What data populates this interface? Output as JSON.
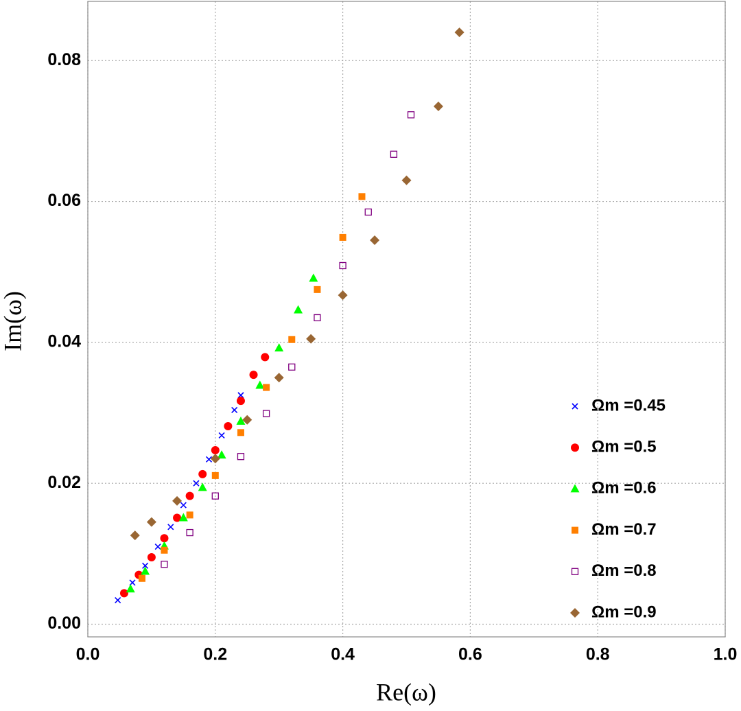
{
  "chart_data": {
    "type": "scatter",
    "xlabel": "Re(ω)",
    "ylabel": "Im(ω)",
    "xlim": [
      0,
      1
    ],
    "ylim": [
      -0.0018,
      0.0884
    ],
    "xticks": [
      {
        "value": 0,
        "label": "0.0"
      },
      0.2,
      0.4,
      0.6,
      0.8,
      {
        "value": 1,
        "label": "1.0"
      }
    ],
    "yticks": [
      {
        "value": 0,
        "label": "0.00"
      },
      0.02,
      0.04,
      0.06,
      0.08
    ],
    "grid": true,
    "legend": "right",
    "series": [
      {
        "name": "Ωm =0.45",
        "color": "#0000ff",
        "marker": "x",
        "x": [
          0.047,
          0.07,
          0.09,
          0.11,
          0.13,
          0.15,
          0.17,
          0.19,
          0.21,
          0.23,
          0.24
        ],
        "values": [
          0.0034,
          0.0059,
          0.0083,
          0.011,
          0.0138,
          0.0169,
          0.02,
          0.0234,
          0.0268,
          0.0304,
          0.0325
        ]
      },
      {
        "name": "Ωm =0.5",
        "color": "#ff0000",
        "marker": "circle",
        "x": [
          0.057,
          0.08,
          0.1,
          0.12,
          0.14,
          0.16,
          0.18,
          0.2,
          0.22,
          0.24,
          0.26,
          0.278
        ],
        "values": [
          0.0044,
          0.007,
          0.0095,
          0.0122,
          0.0151,
          0.0182,
          0.0213,
          0.0247,
          0.0281,
          0.0317,
          0.0354,
          0.0379
        ]
      },
      {
        "name": "Ωm =0.6",
        "color": "#00ff00",
        "marker": "triangle",
        "x": [
          0.067,
          0.09,
          0.12,
          0.15,
          0.18,
          0.21,
          0.24,
          0.27,
          0.3,
          0.33,
          0.354
        ],
        "values": [
          0.005,
          0.0075,
          0.0111,
          0.0151,
          0.0194,
          0.024,
          0.0288,
          0.0339,
          0.0392,
          0.0446,
          0.0491
        ]
      },
      {
        "name": "Ωm =0.7",
        "color": "#ff7f00",
        "marker": "square",
        "x": [
          0.085,
          0.12,
          0.16,
          0.2,
          0.24,
          0.28,
          0.32,
          0.36,
          0.4,
          0.43
        ],
        "values": [
          0.0065,
          0.0105,
          0.0155,
          0.0211,
          0.0272,
          0.0336,
          0.0404,
          0.0475,
          0.0549,
          0.0607
        ]
      },
      {
        "name": "Ωm =0.8",
        "color": "#800080",
        "marker": "open-square",
        "x": [
          0.12,
          0.16,
          0.2,
          0.24,
          0.28,
          0.32,
          0.36,
          0.4,
          0.44,
          0.48,
          0.507
        ],
        "values": [
          0.0085,
          0.013,
          0.0182,
          0.0238,
          0.0299,
          0.0365,
          0.0435,
          0.0509,
          0.0585,
          0.0667,
          0.0723
        ]
      },
      {
        "name": "Ωm =0.9",
        "color": "#996633",
        "marker": "diamond",
        "x": [
          0.074,
          0.1,
          0.14,
          0.2,
          0.25,
          0.3,
          0.35,
          0.4,
          0.45,
          0.5,
          0.55,
          0.583
        ],
        "values": [
          0.0126,
          0.0145,
          0.0175,
          0.0235,
          0.029,
          0.035,
          0.0405,
          0.0467,
          0.0545,
          0.063,
          0.0735,
          0.084
        ]
      }
    ]
  }
}
